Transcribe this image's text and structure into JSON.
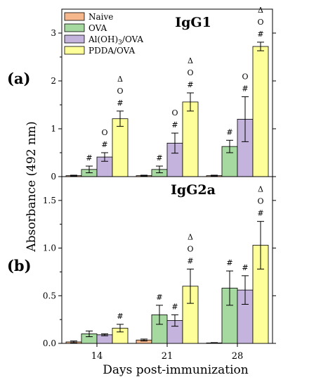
{
  "figure": {
    "ylabel": "Absorbance (492 nm)",
    "xlabel": "Days post-immunization"
  },
  "colors": {
    "Naive": "#f7b78c",
    "OVA": "#a6d9a0",
    "Al(OH)3/OVA": "#c4b3dd",
    "PDDA/OVA": "#ffff99"
  },
  "legend": {
    "entries": [
      {
        "label": "Naive",
        "key": "Naive"
      },
      {
        "label": "OVA",
        "key": "OVA"
      },
      {
        "label": "Al(OH)",
        "sub": "3",
        "tail": "/OVA",
        "key": "Al(OH)3/OVA"
      },
      {
        "label": "PDDA/OVA",
        "key": "PDDA/OVA"
      }
    ]
  },
  "chart_data": [
    {
      "type": "bar",
      "panel_label": "(a)",
      "title": "IgG1",
      "categories": [
        "14",
        "21",
        "28"
      ],
      "ylim": [
        0,
        3.5
      ],
      "yticks": [
        "0",
        "1",
        "2",
        "3"
      ],
      "series": [
        {
          "name": "Naive",
          "values": [
            0.02,
            0.02,
            0.02
          ],
          "errors": [
            0.01,
            0.01,
            0.01
          ],
          "marks": [
            "",
            "",
            ""
          ]
        },
        {
          "name": "OVA",
          "values": [
            0.15,
            0.15,
            0.63
          ],
          "errors": [
            0.07,
            0.07,
            0.13
          ],
          "marks": [
            "#",
            "#",
            "#"
          ]
        },
        {
          "name": "Al(OH)3/OVA",
          "values": [
            0.41,
            0.7,
            1.2
          ],
          "errors": [
            0.09,
            0.21,
            0.47
          ],
          "marks": [
            "#|O",
            "#|O",
            "#|O"
          ]
        },
        {
          "name": "PDDA/OVA",
          "values": [
            1.21,
            1.56,
            2.72
          ],
          "errors": [
            0.16,
            0.19,
            0.09
          ],
          "marks": [
            "#|O|Δ",
            "#|O|Δ",
            "#|O|Δ"
          ]
        }
      ]
    },
    {
      "type": "bar",
      "panel_label": "(b)",
      "title": "IgG2a",
      "categories": [
        "14",
        "21",
        "28"
      ],
      "ylim": [
        0,
        1.75
      ],
      "yticks": [
        "0.0",
        "0.5",
        "1.0",
        "1.5"
      ],
      "series": [
        {
          "name": "Naive",
          "values": [
            0.015,
            0.035,
            0.005
          ],
          "errors": [
            0.01,
            0.01,
            0.003
          ],
          "marks": [
            "",
            "",
            ""
          ]
        },
        {
          "name": "OVA",
          "values": [
            0.1,
            0.3,
            0.58
          ],
          "errors": [
            0.03,
            0.1,
            0.18
          ],
          "marks": [
            "",
            "#",
            "#"
          ]
        },
        {
          "name": "Al(OH)3/OVA",
          "values": [
            0.09,
            0.24,
            0.56
          ],
          "errors": [
            0.01,
            0.06,
            0.15
          ],
          "marks": [
            "",
            "#",
            "#"
          ]
        },
        {
          "name": "PDDA/OVA",
          "values": [
            0.16,
            0.6,
            1.03
          ],
          "errors": [
            0.04,
            0.18,
            0.25
          ],
          "marks": [
            "#",
            "#|O|Δ",
            "#|O|Δ"
          ]
        }
      ]
    }
  ]
}
